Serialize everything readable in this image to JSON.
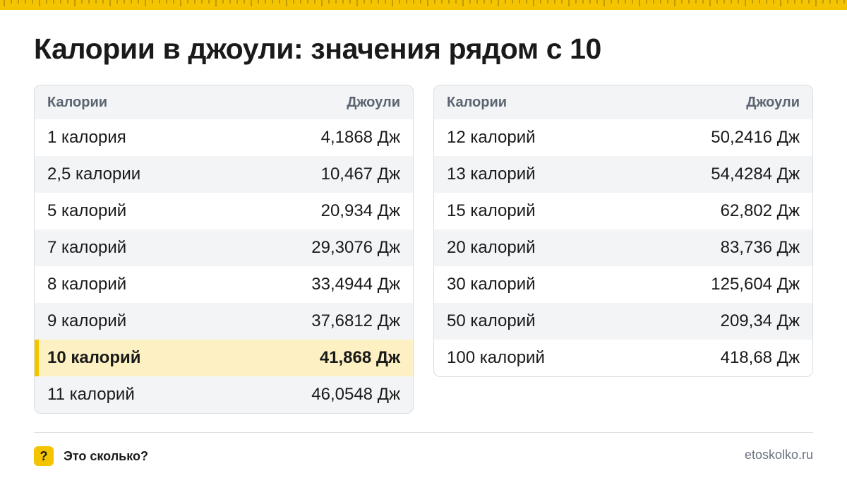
{
  "page": {
    "title": "Калории в джоули: значения рядом с 10",
    "accent_color": "#f5c400"
  },
  "left_table": {
    "headers": {
      "unit_from": "Калории",
      "unit_to": "Джоули"
    },
    "rows": [
      {
        "from": "1 калория",
        "to": "4,1868 Дж"
      },
      {
        "from": "2,5 калории",
        "to": "10,467 Дж"
      },
      {
        "from": "5 калорий",
        "to": "20,934 Дж"
      },
      {
        "from": "7 калорий",
        "to": "29,3076 Дж"
      },
      {
        "from": "8 калорий",
        "to": "33,4944 Дж"
      },
      {
        "from": "9 калорий",
        "to": "37,6812 Дж"
      },
      {
        "from": "10 калорий",
        "to": "41,868 Дж",
        "highlighted": true
      },
      {
        "from": "11 калорий",
        "to": "46,0548 Дж"
      }
    ]
  },
  "right_table": {
    "headers": {
      "unit_from": "Калории",
      "unit_to": "Джоули"
    },
    "rows": [
      {
        "from": "12 калорий",
        "to": "50,2416 Дж"
      },
      {
        "from": "13 калорий",
        "to": "54,4284 Дж"
      },
      {
        "from": "15 калорий",
        "to": "62,802 Дж"
      },
      {
        "from": "20 калорий",
        "to": "83,736 Дж"
      },
      {
        "from": "30 калорий",
        "to": "125,604 Дж"
      },
      {
        "from": "50 калорий",
        "to": "209,34 Дж"
      },
      {
        "from": "100 калорий",
        "to": "418,68 Дж"
      }
    ]
  },
  "footer": {
    "badge_glyph": "?",
    "brand_name": "Это сколько?",
    "site": "etoskolko.ru"
  }
}
